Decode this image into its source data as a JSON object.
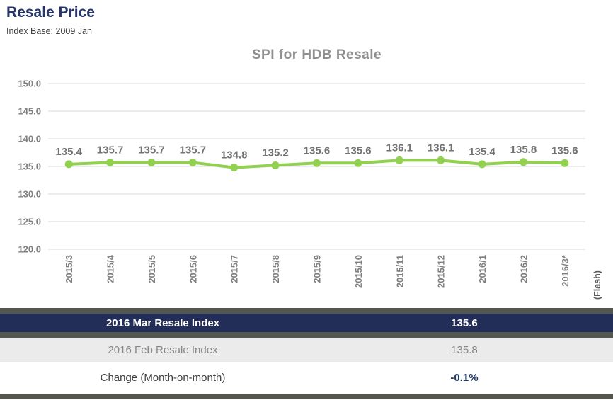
{
  "page": {
    "title": "Resale Price",
    "subtitle": "Index Base: 2009 Jan"
  },
  "chart_data": {
    "type": "line",
    "title": "SPI for HDB Resale",
    "categories": [
      "2015/3",
      "2015/4",
      "2015/5",
      "2015/6",
      "2015/7",
      "2015/8",
      "2015/9",
      "2015/10",
      "2015/11",
      "2015/12",
      "2016/1",
      "2016/2",
      "2016/3*"
    ],
    "series": [
      {
        "name": "SPI for HDB Resale",
        "values": [
          135.4,
          135.7,
          135.7,
          135.7,
          134.8,
          135.2,
          135.6,
          135.6,
          136.1,
          136.1,
          135.4,
          135.8,
          135.6
        ]
      }
    ],
    "ylim": [
      120.0,
      150.0
    ],
    "ytick_step": 5.0,
    "yticks": [
      "150.0",
      "145.0",
      "140.0",
      "135.0",
      "130.0",
      "125.0",
      "120.0"
    ],
    "right_note": "(Flash)",
    "grid": true,
    "legend_position": "none",
    "data_labels_shown": true,
    "line_color": "#92D050",
    "marker_shape": "circle",
    "gridline_color": "#D9D9D9",
    "axis_label_color": "#7F7F7F"
  },
  "table": {
    "rows": [
      {
        "label": "2016 Mar Resale Index",
        "value": "135.6",
        "style": "highlight"
      },
      {
        "label": "2016 Feb Resale Index",
        "value": "135.8",
        "style": "alt"
      },
      {
        "label": "Change (Month-on-month)",
        "value": "-0.1%",
        "style": "change"
      }
    ]
  },
  "colors": {
    "title_navy": "#26356B",
    "highlight_row_navy": "#222D58",
    "separator_gray": "#545750",
    "alt_row_gray": "#EBEBEB",
    "change_value_navy": "#1F3864",
    "chart_green": "#92D050"
  }
}
